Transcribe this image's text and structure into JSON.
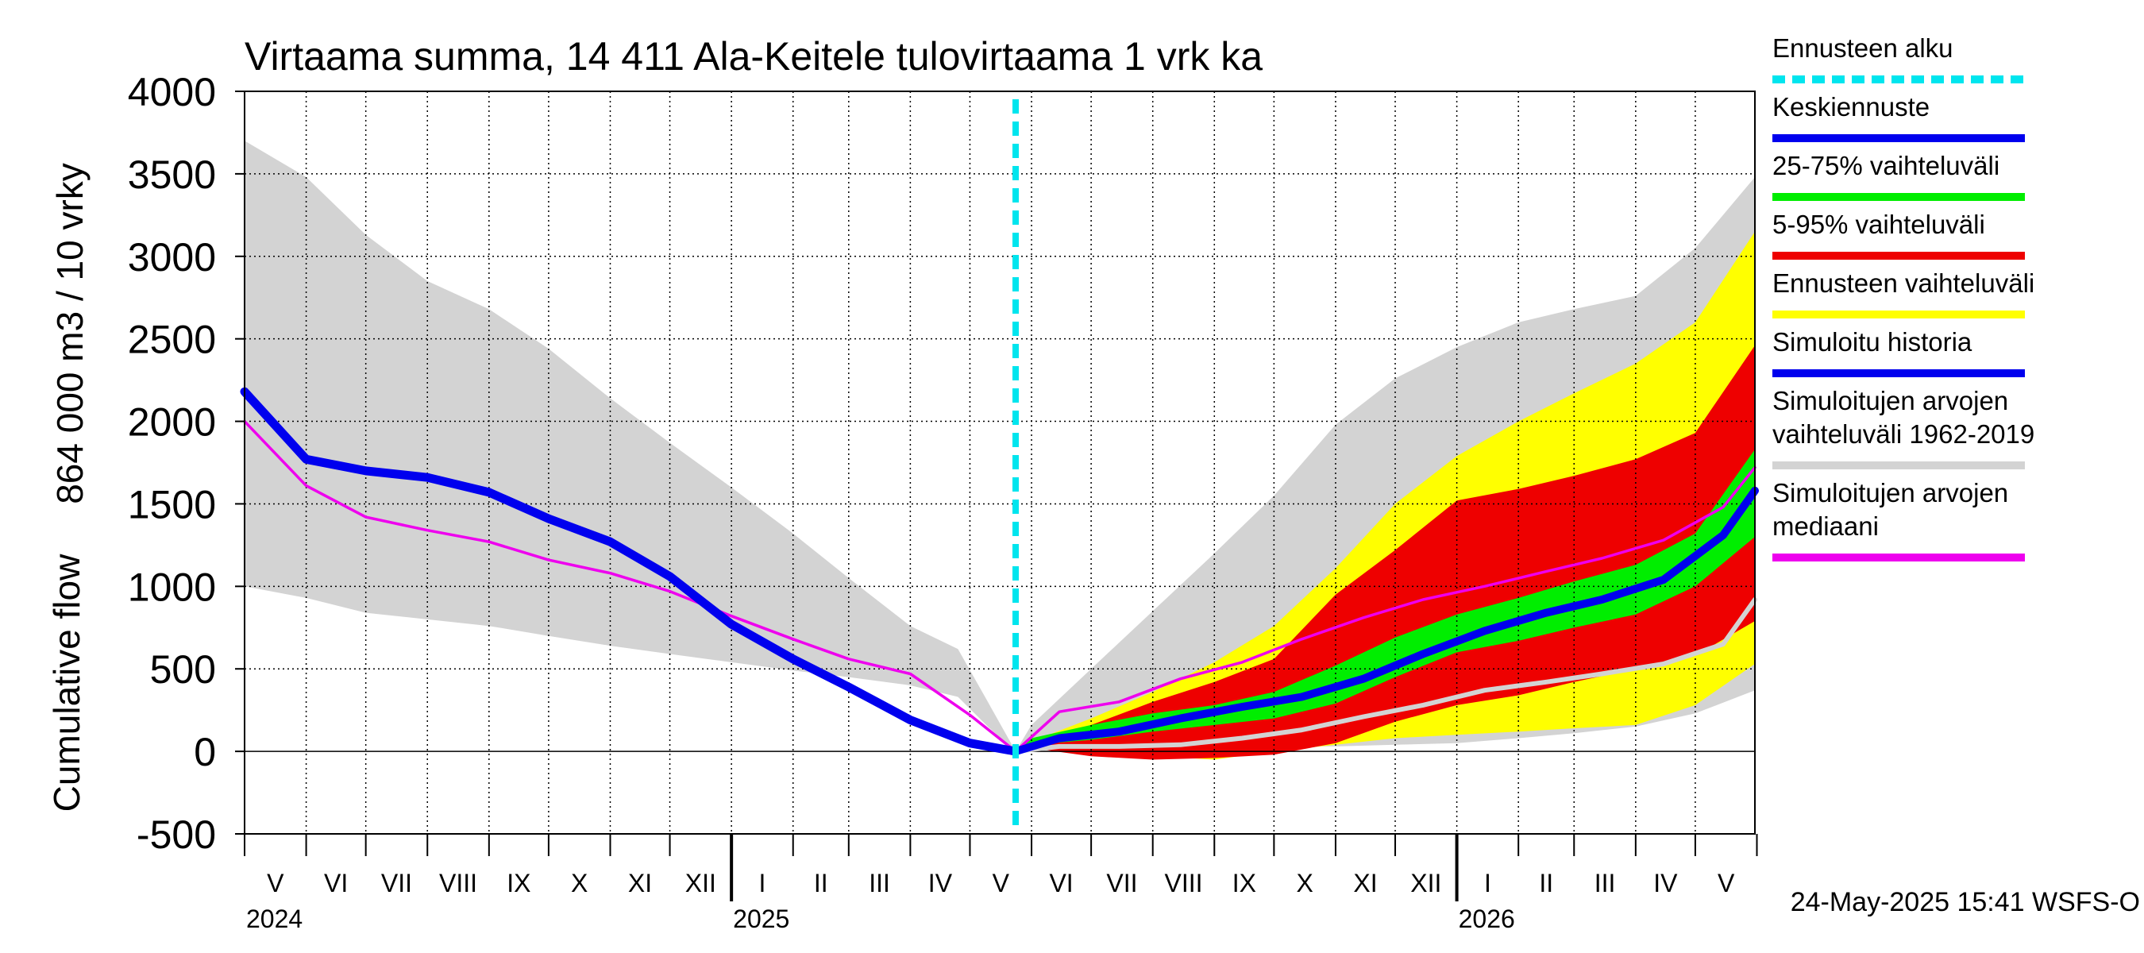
{
  "chart_data": {
    "type": "area",
    "title": "Virtaama summa, 14 411 Ala-Keitele tulovirtaama 1 vrk ka",
    "ylabel_line1": "864 000 m3 / 10 vrky",
    "ylabel_line2": "Cumulative flow",
    "ylim": [
      -500,
      4000
    ],
    "yticks": [
      -500,
      0,
      500,
      1000,
      1500,
      2000,
      2500,
      3000,
      3500,
      4000
    ],
    "xlim": [
      "2024-05-01",
      "2026-05-31"
    ],
    "forecast_start": "2025-05-24",
    "months": [
      "V",
      "VI",
      "VII",
      "VIII",
      "IX",
      "X",
      "XI",
      "XII",
      "I",
      "II",
      "III",
      "IV",
      "V",
      "VI",
      "VII",
      "VIII",
      "IX",
      "X",
      "XI",
      "XII",
      "I",
      "II",
      "III",
      "IV",
      "V"
    ],
    "years": [
      "2024",
      "2025",
      "2026"
    ],
    "timestamp": "24-May-2025 15:41 WSFS-O",
    "legend": [
      {
        "label": "Ennusteen alku",
        "color": "#00e5ee",
        "style": "dashed"
      },
      {
        "label": "Keskiennuste",
        "color": "#0000ee",
        "style": "line"
      },
      {
        "label": "25-75% vaihteluväli",
        "color": "#00ee00",
        "style": "line"
      },
      {
        "label": "5-95% vaihteluväli",
        "color": "#ee0000",
        "style": "line"
      },
      {
        "label": "Ennusteen vaihteluväli",
        "color": "#ffff00",
        "style": "line"
      },
      {
        "label": "Simuloitu historia",
        "color": "#0000ee",
        "style": "line"
      },
      {
        "label": "Simuloitujen arvojen vaihteluväli 1962-2019",
        "label_lines": [
          "Simuloitujen arvojen",
          "vaihteluväli 1962-2019"
        ],
        "color": "#d3d3d3",
        "style": "line"
      },
      {
        "label": "Simuloitujen arvojen mediaani",
        "label_lines": [
          "Simuloitujen arvojen",
          "mediaani"
        ],
        "color": "#ee00ee",
        "style": "line"
      }
    ],
    "bands": {
      "hist_range": {
        "x": [
          "2024-05-01",
          "2024-06-01",
          "2024-07-01",
          "2024-08-01",
          "2024-09-01",
          "2024-10-01",
          "2024-11-01",
          "2024-12-01",
          "2025-01-01",
          "2025-02-01",
          "2025-03-01",
          "2025-04-01",
          "2025-04-25",
          "2025-05-10",
          "2025-05-24",
          "2025-06-01",
          "2025-07-01",
          "2025-08-01",
          "2025-09-01",
          "2025-10-01",
          "2025-11-01",
          "2025-12-01",
          "2026-01-01",
          "2026-02-01",
          "2026-03-01",
          "2026-04-01",
          "2026-05-01",
          "2026-05-31"
        ],
        "upper": [
          3700,
          3480,
          3130,
          2850,
          2680,
          2440,
          2140,
          1870,
          1600,
          1320,
          1050,
          760,
          620,
          300,
          0,
          160,
          500,
          850,
          1200,
          1550,
          1980,
          2260,
          2450,
          2600,
          2680,
          2760,
          3050,
          3480
        ],
        "lower": [
          1000,
          930,
          840,
          800,
          760,
          700,
          640,
          590,
          540,
          490,
          450,
          400,
          330,
          150,
          0,
          10,
          20,
          20,
          30,
          30,
          30,
          40,
          50,
          80,
          110,
          150,
          230,
          370
        ]
      },
      "forecast_5_95_outer": {
        "x": [
          "2025-05-24",
          "2025-06-01",
          "2025-07-01",
          "2025-08-01",
          "2025-09-01",
          "2025-10-01",
          "2025-11-01",
          "2025-12-01",
          "2026-01-01",
          "2026-02-01",
          "2026-03-01",
          "2026-04-01",
          "2026-05-01",
          "2026-05-31"
        ],
        "upper": [
          0,
          60,
          200,
          360,
          540,
          760,
          1110,
          1500,
          1790,
          2000,
          2170,
          2350,
          2600,
          3150
        ],
        "lower": [
          0,
          15,
          0,
          -30,
          -50,
          0,
          40,
          80,
          100,
          120,
          140,
          160,
          280,
          530
        ]
      },
      "forecast_5_95": {
        "x": [
          "2025-05-24",
          "2025-06-01",
          "2025-07-01",
          "2025-08-01",
          "2025-09-01",
          "2025-10-01",
          "2025-11-01",
          "2025-12-01",
          "2026-01-01",
          "2026-02-01",
          "2026-03-01",
          "2026-04-01",
          "2026-05-01",
          "2026-05-31"
        ],
        "upper": [
          0,
          50,
          160,
          300,
          420,
          560,
          950,
          1220,
          1520,
          1590,
          1670,
          1770,
          1930,
          2460
        ],
        "lower": [
          0,
          20,
          -30,
          -50,
          -40,
          -20,
          50,
          180,
          280,
          340,
          420,
          500,
          580,
          790
        ]
      },
      "forecast_25_75": {
        "x": [
          "2025-05-24",
          "2025-06-01",
          "2025-07-01",
          "2025-08-01",
          "2025-09-01",
          "2025-10-01",
          "2025-11-01",
          "2025-12-01",
          "2026-01-01",
          "2026-02-01",
          "2026-03-01",
          "2026-04-01",
          "2026-05-01",
          "2026-05-31"
        ],
        "upper": [
          0,
          80,
          160,
          230,
          280,
          360,
          520,
          690,
          830,
          930,
          1030,
          1130,
          1320,
          1830
        ],
        "lower": [
          0,
          40,
          70,
          120,
          160,
          200,
          290,
          450,
          600,
          670,
          750,
          830,
          1000,
          1300
        ]
      }
    },
    "series": [
      {
        "name": "Simuloitujen arvojen vaihteluväli 1962-2019",
        "role": "hist_min",
        "color": "#d3d3d3",
        "x": [
          "2025-05-24",
          "2025-06-15",
          "2025-07-15",
          "2025-08-15",
          "2025-09-15",
          "2025-10-15",
          "2025-11-15",
          "2025-12-15",
          "2026-01-15",
          "2026-02-15",
          "2026-03-15",
          "2026-04-15",
          "2026-05-15",
          "2026-05-31"
        ],
        "values": [
          0,
          30,
          30,
          40,
          80,
          130,
          210,
          280,
          370,
          420,
          470,
          530,
          650,
          920
        ]
      },
      {
        "name": "Simuloitujen arvojen mediaani",
        "color": "#ee00ee",
        "x": [
          "2024-05-01",
          "2024-06-01",
          "2024-07-01",
          "2024-08-01",
          "2024-09-01",
          "2024-10-01",
          "2024-11-01",
          "2024-12-01",
          "2025-01-01",
          "2025-02-01",
          "2025-03-01",
          "2025-04-01",
          "2025-05-01",
          "2025-05-24",
          "2025-06-15",
          "2025-07-15",
          "2025-08-15",
          "2025-09-15",
          "2025-10-15",
          "2025-11-15",
          "2025-12-15",
          "2026-01-15",
          "2026-02-15",
          "2026-03-15",
          "2026-04-15",
          "2026-05-15",
          "2026-05-31"
        ],
        "values": [
          2000,
          1610,
          1420,
          1340,
          1270,
          1160,
          1080,
          970,
          820,
          680,
          560,
          470,
          220,
          0,
          240,
          300,
          440,
          540,
          680,
          810,
          920,
          1000,
          1090,
          1170,
          1280,
          1480,
          1720
        ]
      },
      {
        "name": "Simuloitu historia",
        "color": "#0000ee",
        "x": [
          "2024-05-01",
          "2024-06-01",
          "2024-07-01",
          "2024-08-01",
          "2024-09-01",
          "2024-10-01",
          "2024-11-01",
          "2024-12-01",
          "2025-01-01",
          "2025-02-01",
          "2025-03-01",
          "2025-04-01",
          "2025-05-01",
          "2025-05-24"
        ],
        "values": [
          2180,
          1770,
          1700,
          1660,
          1570,
          1410,
          1270,
          1060,
          770,
          560,
          390,
          190,
          50,
          0
        ]
      },
      {
        "name": "Keskiennuste",
        "color": "#0000ee",
        "x": [
          "2025-05-24",
          "2025-06-15",
          "2025-07-15",
          "2025-08-15",
          "2025-09-15",
          "2025-10-15",
          "2025-11-15",
          "2025-12-15",
          "2026-01-15",
          "2026-02-15",
          "2026-03-15",
          "2026-04-15",
          "2026-05-15",
          "2026-05-31"
        ],
        "values": [
          0,
          80,
          120,
          200,
          270,
          330,
          440,
          590,
          730,
          840,
          920,
          1040,
          1310,
          1580
        ]
      }
    ]
  }
}
